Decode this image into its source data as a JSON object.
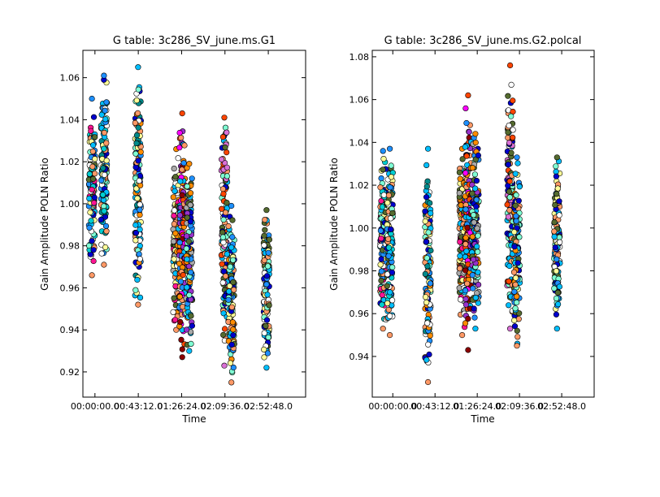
{
  "chart_data": [
    {
      "type": "scatter",
      "title": "G table: 3c286_SV_june.ms.G1",
      "xlabel": "Time",
      "ylabel": "Gain Amplitude POLN Ratio",
      "x_tick_labels": [
        "00:00:00.0",
        "00:43:12.0",
        "01:26:24.0",
        "02:09:36.0",
        "02:52:48.0"
      ],
      "x_ticks_minutes": [
        0,
        43.2,
        86.4,
        129.6,
        172.8
      ],
      "xlim_minutes": [
        -12,
        210
      ],
      "ylim": [
        0.908,
        1.073
      ],
      "y_ticks": [
        0.92,
        0.94,
        0.96,
        0.98,
        1.0,
        1.02,
        1.04,
        1.06
      ],
      "y_tick_labels": [
        "0.92",
        "0.94",
        "0.96",
        "0.98",
        "1.00",
        "1.02",
        "1.04",
        "1.06"
      ],
      "grid": false,
      "clusters": [
        {
          "x": [
            -6,
            0
          ],
          "y": [
            0.966,
            1.05
          ],
          "colors": [
            "#ff9966",
            "#1e90ff",
            "#00ced1",
            "#ffffff",
            "#ff1493",
            "#556b2f",
            "#7fffd4",
            "#00bfff",
            "#ffff99",
            "#0000cd"
          ]
        },
        {
          "x": [
            6,
            12
          ],
          "y": [
            0.971,
            1.061
          ],
          "colors": [
            "#ff9966",
            "#1e90ff",
            "#00ced1",
            "#ffffff",
            "#0000cd",
            "#7fffd4",
            "#00bfff",
            "#ffff99",
            "#008b8b"
          ]
        },
        {
          "x": [
            40,
            46
          ],
          "y": [
            0.952,
            1.065
          ],
          "colors": [
            "#ff9966",
            "#00bfff",
            "#008b8b",
            "#ffffff",
            "#0000cd",
            "#ff8c00",
            "#7fffd4",
            "#ffff99",
            "#1e90ff"
          ]
        },
        {
          "x": [
            78,
            84
          ],
          "y": [
            0.94,
            1.026
          ],
          "colors": [
            "#ff9966",
            "#ff8c00",
            "#556b2f",
            "#a9a9a9",
            "#ffffff",
            "#ff1493",
            "#ffff99",
            "#00bfff"
          ]
        },
        {
          "x": [
            84,
            90
          ],
          "y": [
            0.927,
            1.043
          ],
          "colors": [
            "#8b0000",
            "#ff4500",
            "#ff8c00",
            "#ff9966",
            "#9932cc",
            "#00bfff",
            "#ff00ff",
            "#1e90ff"
          ]
        },
        {
          "x": [
            91,
            97
          ],
          "y": [
            0.93,
            1.019
          ],
          "colors": [
            "#00bfff",
            "#ff8c00",
            "#9932cc",
            "#556b2f",
            "#a9a9a9",
            "#1e90ff",
            "#0000cd",
            "#7fffd4"
          ]
        },
        {
          "x": [
            126,
            132
          ],
          "y": [
            0.923,
            1.041
          ],
          "colors": [
            "#da70d6",
            "#ff4500",
            "#ff9966",
            "#556b2f",
            "#00bfff",
            "#ffffff",
            "#0000cd",
            "#7fffd4"
          ]
        },
        {
          "x": [
            133,
            139
          ],
          "y": [
            0.915,
            0.999
          ],
          "colors": [
            "#ff9966",
            "#1e90ff",
            "#00bfff",
            "#556b2f",
            "#ff8c00",
            "#ffff99",
            "#0000cd",
            "#7fffd4"
          ]
        },
        {
          "x": [
            168,
            174
          ],
          "y": [
            0.922,
            0.997
          ],
          "colors": [
            "#00bfff",
            "#556b2f",
            "#ffffff",
            "#0000cd",
            "#ff9966",
            "#7fffd4",
            "#ffff99",
            "#1e90ff"
          ]
        }
      ]
    },
    {
      "type": "scatter",
      "title": "G table: 3c286_SV_june.ms.G2.polcal",
      "xlabel": "Time",
      "ylabel": "Gain Amplitude POLN Ratio",
      "x_tick_labels": [
        "00:00:00.0",
        "00:43:12.0",
        "01:26:24.0",
        "02:09:36.0",
        "02:52:48.0"
      ],
      "x_ticks_minutes": [
        0,
        43.2,
        86.4,
        129.6,
        172.8
      ],
      "xlim_minutes": [
        -21,
        206
      ],
      "ylim": [
        0.921,
        1.083
      ],
      "y_ticks": [
        0.94,
        0.96,
        0.98,
        1.0,
        1.02,
        1.04,
        1.06,
        1.08
      ],
      "y_tick_labels": [
        "0.94",
        "0.96",
        "0.98",
        "1.00",
        "1.02",
        "1.04",
        "1.06",
        "1.08"
      ],
      "grid": false,
      "clusters": [
        {
          "x": [
            -13,
            -7
          ],
          "y": [
            0.953,
            1.036
          ],
          "colors": [
            "#ff9966",
            "#1e90ff",
            "#00ced1",
            "#ffffff",
            "#ff1493",
            "#556b2f",
            "#7fffd4",
            "#00bfff",
            "#ffff99",
            "#0000cd"
          ]
        },
        {
          "x": [
            -6,
            0
          ],
          "y": [
            0.95,
            1.037
          ],
          "colors": [
            "#ff9966",
            "#1e90ff",
            "#00ced1",
            "#ffffff",
            "#0000cd",
            "#7fffd4",
            "#00bfff",
            "#ffff99",
            "#556b2f"
          ]
        },
        {
          "x": [
            33,
            39
          ],
          "y": [
            0.928,
            1.037
          ],
          "colors": [
            "#ff9966",
            "#00bfff",
            "#008b8b",
            "#ffffff",
            "#0000cd",
            "#ff8c00",
            "#7fffd4",
            "#ffff99",
            "#1e90ff"
          ]
        },
        {
          "x": [
            68,
            74
          ],
          "y": [
            0.95,
            1.037
          ],
          "colors": [
            "#ff9966",
            "#ff8c00",
            "#556b2f",
            "#a9a9a9",
            "#ffffff",
            "#ff1493",
            "#ffff99",
            "#00bfff"
          ]
        },
        {
          "x": [
            74,
            80
          ],
          "y": [
            0.943,
            1.062
          ],
          "colors": [
            "#8b0000",
            "#ff4500",
            "#ff8c00",
            "#ff9966",
            "#9932cc",
            "#00bfff",
            "#ff00ff",
            "#1e90ff"
          ]
        },
        {
          "x": [
            81,
            88
          ],
          "y": [
            0.953,
            1.044
          ],
          "colors": [
            "#00bfff",
            "#ff8c00",
            "#9932cc",
            "#556b2f",
            "#a9a9a9",
            "#1e90ff",
            "#0000cd",
            "#7fffd4"
          ]
        },
        {
          "x": [
            117,
            123
          ],
          "y": [
            0.953,
            1.076
          ],
          "colors": [
            "#da70d6",
            "#ff4500",
            "#ff9966",
            "#556b2f",
            "#00bfff",
            "#ffffff",
            "#0000cd",
            "#7fffd4"
          ]
        },
        {
          "x": [
            124,
            130
          ],
          "y": [
            0.945,
            1.033
          ],
          "colors": [
            "#ff9966",
            "#1e90ff",
            "#00bfff",
            "#556b2f",
            "#ff8c00",
            "#ffff99",
            "#0000cd",
            "#7fffd4"
          ]
        },
        {
          "x": [
            165,
            171
          ],
          "y": [
            0.953,
            1.033
          ],
          "colors": [
            "#00bfff",
            "#556b2f",
            "#ffffff",
            "#0000cd",
            "#ff9966",
            "#7fffd4",
            "#ffff99",
            "#1e90ff"
          ]
        }
      ]
    }
  ]
}
